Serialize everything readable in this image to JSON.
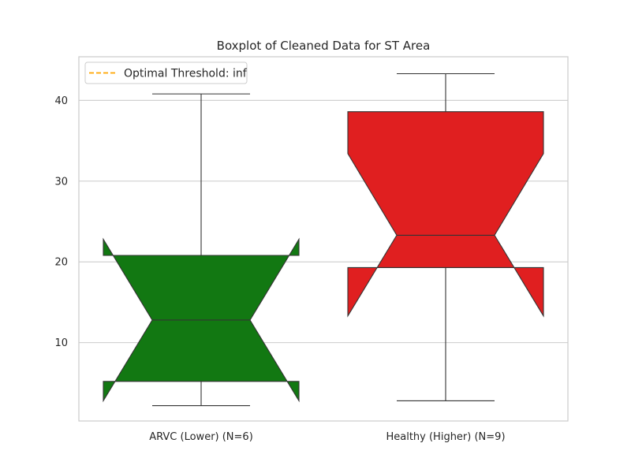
{
  "chart_data": {
    "type": "boxplot",
    "title": "Boxplot of Cleaned Data for ST Area",
    "xlabel": "",
    "ylabel": "",
    "ylim": [
      0.3,
      45.4
    ],
    "yticks": [
      10,
      20,
      30,
      40
    ],
    "grid": true,
    "notched": true,
    "legend": {
      "placement": "top-left",
      "entries": [
        {
          "label": "Optimal Threshold: inf",
          "color": "#FFA500",
          "style": "dashed"
        }
      ]
    },
    "boxes": [
      {
        "label": "ARVC (Lower) (N=6)",
        "color": "#127812",
        "whisker_low": 2.2,
        "q1": 5.2,
        "median": 12.8,
        "q3": 20.8,
        "whisker_high": 40.8,
        "notch_low": 2.8,
        "notch_high": 22.8
      },
      {
        "label": "Healthy (Higher) (N=9)",
        "color": "#E01F20",
        "whisker_low": 2.8,
        "q1": 19.3,
        "median": 23.3,
        "q3": 38.6,
        "whisker_high": 43.3,
        "notch_low": 13.3,
        "notch_high": 33.4
      }
    ]
  }
}
